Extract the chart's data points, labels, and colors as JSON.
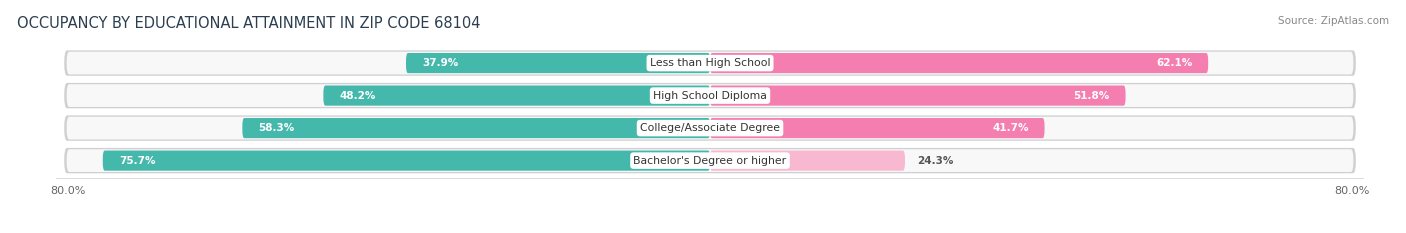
{
  "title": "OCCUPANCY BY EDUCATIONAL ATTAINMENT IN ZIP CODE 68104",
  "source": "Source: ZipAtlas.com",
  "categories": [
    "Less than High School",
    "High School Diploma",
    "College/Associate Degree",
    "Bachelor's Degree or higher"
  ],
  "owner_values": [
    37.9,
    48.2,
    58.3,
    75.7
  ],
  "renter_values": [
    62.1,
    51.8,
    41.7,
    24.3
  ],
  "owner_color": "#45B8AC",
  "renter_color": "#F47EB0",
  "renter_color_light": "#F8B8D0",
  "background_color": "#ffffff",
  "row_bg_color": "#e8e8e8",
  "row_inner_color": "#f5f5f5",
  "x_left_label": "80.0%",
  "x_right_label": "80.0%",
  "title_fontsize": 10.5,
  "source_fontsize": 7.5,
  "bar_height": 0.62,
  "axis_max": 80.0
}
